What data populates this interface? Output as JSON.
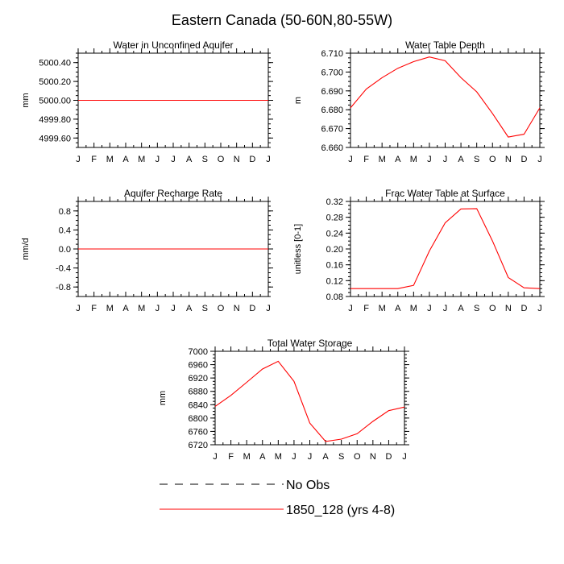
{
  "figure": {
    "title": "Eastern Canada (50-60N,80-55W)"
  },
  "legend": {
    "entries": [
      {
        "label": "No Obs",
        "style": "dashed",
        "color": "#000000"
      },
      {
        "label": "1850_128 (yrs 4-8)",
        "style": "solid",
        "color": "#ff0000"
      }
    ]
  },
  "chart_data": [
    {
      "type": "line",
      "title": "Water in Unconfined Aquifer",
      "ylabel": "mm",
      "xticks": [
        "J",
        "F",
        "M",
        "A",
        "M",
        "J",
        "J",
        "A",
        "S",
        "O",
        "N",
        "D",
        "J"
      ],
      "ylim": [
        4999.5,
        5000.5
      ],
      "yticks": [
        4999.6,
        4999.8,
        5000.0,
        5000.2,
        5000.4
      ],
      "ytick_labels": [
        "4999.60",
        "4999.80",
        "5000.00",
        "5000.20",
        "5000.40"
      ],
      "series": [
        {
          "name": "1850_128 (yrs 4-8)",
          "color": "#ff0000",
          "values": [
            5000,
            5000,
            5000,
            5000,
            5000,
            5000,
            5000,
            5000,
            5000,
            5000,
            5000,
            5000,
            5000
          ]
        }
      ]
    },
    {
      "type": "line",
      "title": "Water Table Depth",
      "ylabel": "m",
      "xticks": [
        "J",
        "F",
        "M",
        "A",
        "M",
        "J",
        "J",
        "A",
        "S",
        "O",
        "N",
        "D",
        "J"
      ],
      "ylim": [
        6.66,
        6.71
      ],
      "yticks": [
        6.66,
        6.67,
        6.68,
        6.69,
        6.7,
        6.71
      ],
      "ytick_labels": [
        "6.660",
        "6.670",
        "6.680",
        "6.690",
        "6.700",
        "6.710"
      ],
      "series": [
        {
          "name": "1850_128 (yrs 4-8)",
          "color": "#ff0000",
          "values": [
            6.681,
            6.691,
            6.697,
            6.702,
            6.7055,
            6.708,
            6.706,
            6.697,
            6.6895,
            6.678,
            6.6655,
            6.667,
            6.681
          ]
        }
      ]
    },
    {
      "type": "line",
      "title": "Aquifer Recharge Rate",
      "ylabel": "mm/d",
      "xticks": [
        "J",
        "F",
        "M",
        "A",
        "M",
        "J",
        "J",
        "A",
        "S",
        "O",
        "N",
        "D",
        "J"
      ],
      "ylim": [
        -1.0,
        1.0
      ],
      "yticks": [
        -0.8,
        -0.4,
        0.0,
        0.4,
        0.8
      ],
      "ytick_labels": [
        "-0.8",
        "-0.4",
        "0.0",
        "0.4",
        "0.8"
      ],
      "series": [
        {
          "name": "1850_128 (yrs 4-8)",
          "color": "#ff0000",
          "values": [
            0,
            0,
            0,
            0,
            0,
            0,
            0,
            0,
            0,
            0,
            0,
            0,
            0
          ]
        }
      ]
    },
    {
      "type": "line",
      "title": "Frac Water Table at Surface",
      "ylabel": "unitless [0-1]",
      "xticks": [
        "J",
        "F",
        "M",
        "A",
        "M",
        "J",
        "J",
        "A",
        "S",
        "O",
        "N",
        "D",
        "J"
      ],
      "ylim": [
        0.08,
        0.32
      ],
      "yticks": [
        0.08,
        0.12,
        0.16,
        0.2,
        0.24,
        0.28,
        0.32
      ],
      "ytick_labels": [
        "0.08",
        "0.12",
        "0.16",
        "0.20",
        "0.24",
        "0.28",
        "0.32"
      ],
      "series": [
        {
          "name": "1850_128 (yrs 4-8)",
          "color": "#ff0000",
          "values": [
            0.1,
            0.1,
            0.1,
            0.1,
            0.108,
            0.195,
            0.266,
            0.301,
            0.302,
            0.22,
            0.128,
            0.102,
            0.1
          ]
        }
      ]
    },
    {
      "type": "line",
      "title": "Total Water Storage",
      "ylabel": "mm",
      "xticks": [
        "J",
        "F",
        "M",
        "A",
        "M",
        "J",
        "J",
        "A",
        "S",
        "O",
        "N",
        "D",
        "J"
      ],
      "ylim": [
        6720,
        7000
      ],
      "yticks": [
        6720,
        6760,
        6800,
        6840,
        6880,
        6920,
        6960,
        7000
      ],
      "ytick_labels": [
        "6720",
        "6760",
        "6800",
        "6840",
        "6880",
        "6920",
        "6960",
        "7000"
      ],
      "series": [
        {
          "name": "1850_128 (yrs 4-8)",
          "color": "#ff0000",
          "values": [
            6835,
            6868,
            6907,
            6947,
            6970,
            6910,
            6785,
            6730,
            6737,
            6753,
            6790,
            6822,
            6833
          ]
        }
      ]
    }
  ]
}
